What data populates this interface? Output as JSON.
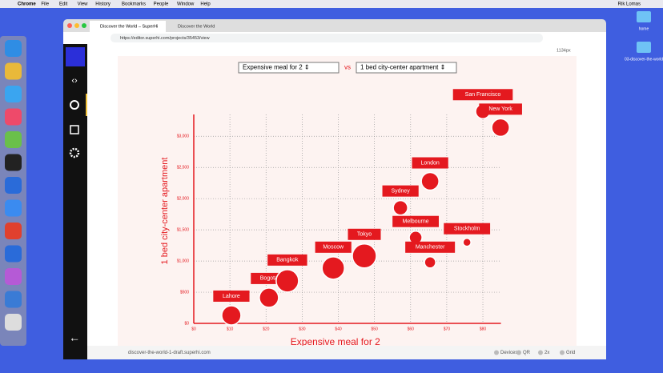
{
  "menubar": {
    "items": [
      "Chrome",
      "File",
      "Edit",
      "View",
      "History",
      "Bookmarks",
      "People",
      "Window",
      "Help"
    ],
    "user": "Rik Lomas"
  },
  "desktop": {
    "icons": [
      "home",
      "03-discover-the-world"
    ]
  },
  "browser": {
    "tabs": [
      "Discover the World – SuperHi",
      "Discover the World"
    ],
    "url": "https://editor.superhi.com/projects/35453/view",
    "width_label": "1134px",
    "footer": {
      "url": "discover-the-world-1-draft.superhi.com",
      "buttons": [
        "Devices",
        "QR",
        "2x",
        "Grid"
      ]
    }
  },
  "selects": {
    "left": "Expensive meal for 2 ⇕",
    "vs": "vs",
    "right": "1 bed city-center apartment ⇕"
  },
  "chart_data": {
    "type": "scatter",
    "color": "#e4191f",
    "x_label": "Expensive meal for 2",
    "y_label": "1 bed city-center apartment",
    "labels": [
      "Lahore",
      "Bogota",
      "Bangkok",
      "Moscow",
      "Tokyo",
      "Sydney",
      "London",
      "Melbourne",
      "Manchester",
      "Stockholm",
      "San Francisco",
      "New York"
    ],
    "x": [
      10.4,
      20.8,
      25.9,
      38.6,
      47.2,
      57.2,
      65.4,
      61.4,
      65.4,
      75.6,
      80,
      84.9
    ],
    "y": [
      129,
      412,
      682,
      888,
      1081,
      1853,
      2278,
      1377,
      978,
      1300,
      3398,
      3140
    ],
    "sizes": [
      12,
      12,
      14,
      14,
      15,
      9,
      11,
      8,
      7,
      5,
      9,
      11
    ],
    "xlim": [
      0,
      85
    ],
    "ylim": [
      0,
      3350
    ],
    "xticks": [
      {
        "value": 0,
        "label": "$0"
      },
      {
        "value": 10,
        "label": "$10"
      },
      {
        "value": 20,
        "label": "$20"
      },
      {
        "value": 30,
        "label": "$30"
      },
      {
        "value": 40,
        "label": "$40"
      },
      {
        "value": 50,
        "label": "$50"
      },
      {
        "value": 60,
        "label": "$60"
      },
      {
        "value": 70,
        "label": "$70"
      },
      {
        "value": 80,
        "label": "$80"
      }
    ],
    "yticks": [
      {
        "value": 0,
        "label": "$0"
      },
      {
        "value": 500,
        "label": "$500"
      },
      {
        "value": 1000,
        "label": "$1,000"
      },
      {
        "value": 1500,
        "label": "$1,500"
      },
      {
        "value": 2000,
        "label": "$2,000"
      },
      {
        "value": 2500,
        "label": "$2,500"
      },
      {
        "value": 3000,
        "label": "$3,000"
      }
    ],
    "grid": true
  }
}
